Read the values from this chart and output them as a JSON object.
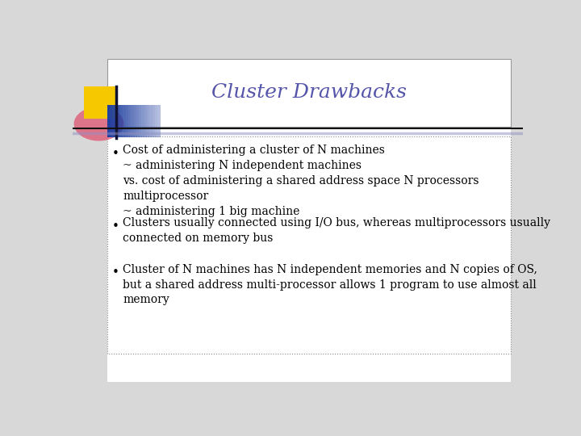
{
  "title": "Cluster Drawbacks",
  "title_color": "#5555aa",
  "title_fontsize": 18,
  "background_color": "#d8d8d8",
  "slide_bg": "#ffffff",
  "bullet_points": [
    "Cost of administering a cluster of N machines\n~ administering N independent machines\nvs. cost of administering a shared address space N processors\nmultiprocessor\n~ administering 1 big machine",
    "Clusters usually connected using I/O bus, whereas multiprocessors usually\nconnected on memory bus",
    "Cluster of N machines has N independent memories and N copies of OS,\nbut a shared address multi-processor allows 1 program to use almost all\nmemory"
  ],
  "bullet_fontsize": 10,
  "bullet_color": "#000000",
  "header_box_edge": "#999999",
  "content_box_edge": "#888888",
  "yellow_color": "#f5c800",
  "red_color": "#e04060",
  "blue_color": "#2040a0",
  "line1_color": "#111111",
  "line2_color": "#9090c0"
}
